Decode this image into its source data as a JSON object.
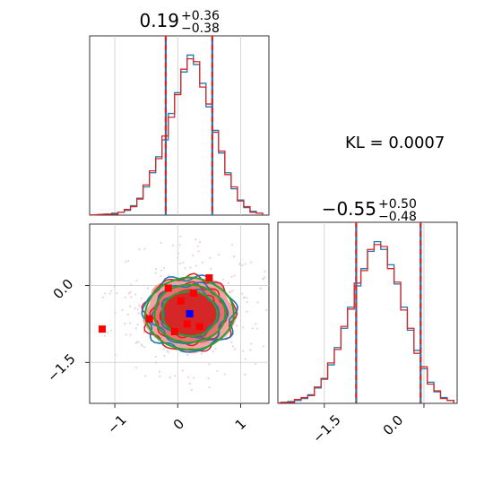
{
  "chart_data": [
    {
      "type": "histogram",
      "panel": "marginal-x",
      "title": {
        "median": "0.19",
        "plus": "+0.36",
        "minus": "−0.38"
      },
      "xlim": [
        -1.4,
        1.45
      ],
      "quantile_lines": [
        -0.19,
        0.55
      ],
      "series": [
        {
          "color": "#1f77b4",
          "bin_centers": [
            -1.1,
            -1.0,
            -0.9,
            -0.8,
            -0.7,
            -0.6,
            -0.5,
            -0.4,
            -0.3,
            -0.2,
            -0.1,
            0.0,
            0.1,
            0.2,
            0.3,
            0.4,
            0.5,
            0.6,
            0.7,
            0.8,
            0.9,
            1.0,
            1.1,
            1.2,
            1.3
          ],
          "counts": [
            1,
            2,
            3,
            5,
            10,
            18,
            30,
            45,
            62,
            80,
            108,
            130,
            152,
            170,
            160,
            140,
            115,
            90,
            66,
            45,
            28,
            16,
            8,
            4,
            2
          ]
        },
        {
          "color": "#d62728",
          "bin_centers": [
            -1.1,
            -1.0,
            -0.9,
            -0.8,
            -0.7,
            -0.6,
            -0.5,
            -0.4,
            -0.3,
            -0.2,
            -0.1,
            0.0,
            0.1,
            0.2,
            0.3,
            0.4,
            0.5,
            0.6,
            0.7,
            0.8,
            0.9,
            1.0,
            1.1,
            1.2,
            1.3
          ],
          "counts": [
            1,
            1,
            3,
            6,
            9,
            17,
            32,
            47,
            60,
            84,
            104,
            128,
            155,
            166,
            163,
            136,
            118,
            88,
            68,
            43,
            30,
            15,
            9,
            3,
            2
          ]
        }
      ]
    },
    {
      "type": "histogram",
      "panel": "marginal-y",
      "title": {
        "median": "−0.55",
        "plus": "+0.50",
        "minus": "−0.48"
      },
      "xlim": [
        -2.2,
        0.5
      ],
      "xticks": [
        "−1.5",
        "0.0"
      ],
      "quantile_lines": [
        -1.02,
        -0.05
      ],
      "series": [
        {
          "color": "#1f77b4",
          "bin_centers": [
            -2.1,
            -2.0,
            -1.9,
            -1.8,
            -1.7,
            -1.6,
            -1.5,
            -1.4,
            -1.3,
            -1.2,
            -1.1,
            -1.0,
            -0.9,
            -0.8,
            -0.7,
            -0.6,
            -0.5,
            -0.4,
            -0.3,
            -0.2,
            -0.1,
            0.0,
            0.1,
            0.2,
            0.3,
            0.4
          ],
          "counts": [
            1,
            2,
            3,
            5,
            9,
            16,
            26,
            40,
            58,
            78,
            100,
            122,
            140,
            158,
            168,
            160,
            144,
            124,
            100,
            76,
            55,
            36,
            22,
            12,
            6,
            3
          ]
        },
        {
          "color": "#d62728",
          "bin_centers": [
            -2.1,
            -2.0,
            -1.9,
            -1.8,
            -1.7,
            -1.6,
            -1.5,
            -1.4,
            -1.3,
            -1.2,
            -1.1,
            -1.0,
            -0.9,
            -0.8,
            -0.7,
            -0.6,
            -0.5,
            -0.4,
            -0.3,
            -0.2,
            -0.1,
            0.0,
            0.1,
            0.2,
            0.3,
            0.4
          ],
          "counts": [
            1,
            1,
            4,
            6,
            8,
            17,
            25,
            42,
            56,
            80,
            98,
            125,
            138,
            160,
            165,
            163,
            140,
            126,
            97,
            78,
            52,
            38,
            20,
            13,
            5,
            3
          ]
        }
      ]
    },
    {
      "type": "scatter",
      "panel": "joint",
      "xlim": [
        -1.4,
        1.45
      ],
      "ylim": [
        -2.3,
        1.2
      ],
      "xticks": [
        "−1",
        "0",
        "1"
      ],
      "yticks": [
        "0.0",
        "−1.5"
      ],
      "contour_center": [
        0.19,
        -0.55
      ],
      "contour_radii": [
        0.45,
        0.58,
        0.72
      ],
      "red_points": [
        [
          -1.2,
          -0.85
        ],
        [
          -0.45,
          -0.65
        ],
        [
          -0.15,
          -0.05
        ],
        [
          0.05,
          -0.3
        ],
        [
          0.25,
          -0.15
        ],
        [
          0.5,
          0.15
        ],
        [
          0.15,
          -0.75
        ],
        [
          -0.05,
          -0.9
        ],
        [
          0.35,
          -0.8
        ]
      ],
      "blue_points": [
        [
          0.19,
          -0.55
        ]
      ]
    }
  ],
  "annotation": {
    "text": "KL = 0.0007"
  }
}
